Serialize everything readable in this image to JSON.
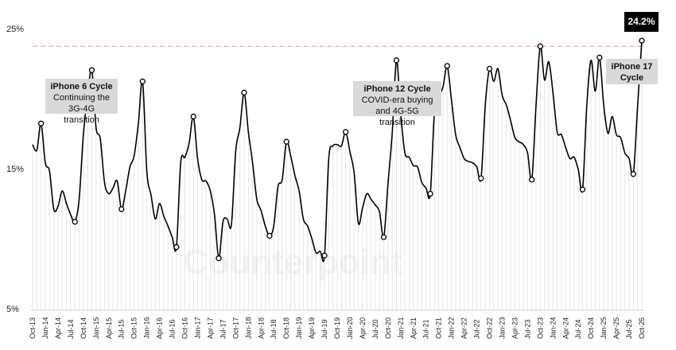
{
  "chart_data": {
    "type": "line",
    "ylabel": "",
    "xlabel": "",
    "ylim": [
      5,
      25
    ],
    "yticks": [
      "25%",
      "15%",
      "5%"
    ],
    "ytick_values": [
      25,
      15,
      5
    ],
    "start_month": "Oct-13",
    "frequency": "monthly",
    "xtick_labels": [
      "Oct-13",
      "Jan-14",
      "Apr-14",
      "Jul-14",
      "Oct-14",
      "Jan-15",
      "Apr-15",
      "Jul-15",
      "Oct-15",
      "Jan-16",
      "Apr-16",
      "Jul-16",
      "Oct-16",
      "Jan-17",
      "Apr-17",
      "Jul-17",
      "Oct-17",
      "Jan-18",
      "Apr-18",
      "Jul-18",
      "Oct-18",
      "Jan-19",
      "Apr-19",
      "Jul-19",
      "Oct-19",
      "Jan-20",
      "Apr-20",
      "Jul-20",
      "Oct-20",
      "Jan-21",
      "Apr-21",
      "Jul-21",
      "Oct-21",
      "Jan-22",
      "Apr-22",
      "Jul-22",
      "Oct-22",
      "Jan-23",
      "Apr-23",
      "Jul-23",
      "Oct-23",
      "Jan-24",
      "Apr-24",
      "Jul-24",
      "Oct-24",
      "Jan-25",
      "Apr-25",
      "Jul-25",
      "Oct-25"
    ],
    "values": [
      16.8,
      16.4,
      18.3,
      15.5,
      14.9,
      12.2,
      12.4,
      13.5,
      12.6,
      11.8,
      11.3,
      12.9,
      17.5,
      20.3,
      22.1,
      18.0,
      17.2,
      14.1,
      13.3,
      13.7,
      14.2,
      12.2,
      13.5,
      15.2,
      16.0,
      18.3,
      21.3,
      14.9,
      13.2,
      11.5,
      12.6,
      11.7,
      11.0,
      10.2,
      9.5,
      15.5,
      15.9,
      16.9,
      18.8,
      15.8,
      14.3,
      14.2,
      13.5,
      11.8,
      8.7,
      11.3,
      11.5,
      11.1,
      16.3,
      18.0,
      20.5,
      17.7,
      15.5,
      12.9,
      12.1,
      11.0,
      10.3,
      11.0,
      13.8,
      14.3,
      17.0,
      16.0,
      14.6,
      13.5,
      11.5,
      11.0,
      10.1,
      9.1,
      9.2,
      8.9,
      15.8,
      16.7,
      16.8,
      16.7,
      17.7,
      16.3,
      14.8,
      11.2,
      12.3,
      13.3,
      12.9,
      12.5,
      12.0,
      10.2,
      14.0,
      17.6,
      22.8,
      19.0,
      16.2,
      15.9,
      15.3,
      15.2,
      14.1,
      13.7,
      13.3,
      19.2,
      20.2,
      20.9,
      22.4,
      20.0,
      17.5,
      16.6,
      15.8,
      15.6,
      15.5,
      15.2,
      14.4,
      19.6,
      22.2,
      21.3,
      22.2,
      20.3,
      19.6,
      18.5,
      17.3,
      17.0,
      16.8,
      16.2,
      14.3,
      19.6,
      23.8,
      21.4,
      22.7,
      20.5,
      17.7,
      17.5,
      16.6,
      15.8,
      15.9,
      15.0,
      13.6,
      19.6,
      22.8,
      20.6,
      23.0,
      19.6,
      17.6,
      18.8,
      17.5,
      17.3,
      16.2,
      15.8,
      14.7,
      19.5,
      24.2
    ],
    "marker_indices": [
      2,
      10,
      14,
      21,
      26,
      34,
      38,
      44,
      50,
      56,
      60,
      69,
      74,
      83,
      86,
      94,
      98,
      106,
      108,
      118,
      120,
      130,
      134,
      142,
      144
    ],
    "reference_line": {
      "value": 23.8,
      "style": "dashed",
      "color": "#e0a0a8"
    },
    "line_color": "#000000",
    "dropline_color": "#e6e6e6",
    "callout": "24.2%",
    "annotations": [
      {
        "title": "iPhone 6 Cycle",
        "line1": "Continuing the",
        "line2": "3G-4G transition"
      },
      {
        "title": "iPhone 12 Cycle",
        "line1": "COVID-era buying",
        "line2": "and 4G-5G transition"
      },
      {
        "title": "iPhone 17",
        "line1": "Cycle"
      }
    ],
    "watermark": "Counterpoint",
    "grid": false,
    "legend": "none"
  }
}
